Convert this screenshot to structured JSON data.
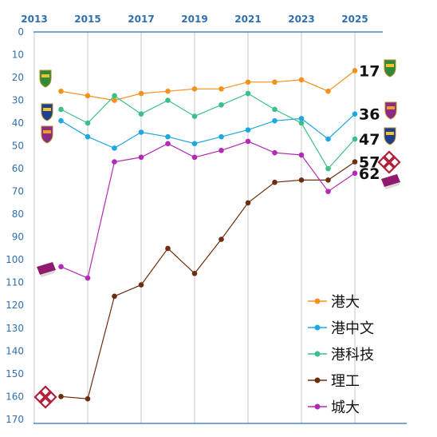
{
  "chart_data": {
    "type": "line",
    "x": [
      2014,
      2015,
      2016,
      2017,
      2018,
      2019,
      2020,
      2021,
      2022,
      2023,
      2024,
      2025
    ],
    "x_ticks": [
      2013,
      2015,
      2017,
      2019,
      2021,
      2023,
      2025
    ],
    "y_ticks": [
      0,
      10,
      20,
      30,
      40,
      50,
      60,
      70,
      80,
      90,
      100,
      110,
      120,
      130,
      140,
      150,
      160,
      170
    ],
    "xlim": [
      2013,
      2025.5
    ],
    "ylim": [
      0,
      170
    ],
    "y_inverted": true,
    "grid": "vertical",
    "legend_position": "bottom-right",
    "series": [
      {
        "name": "港大",
        "color": "#f5921e",
        "values": [
          26,
          28,
          30,
          27,
          26,
          25,
          25,
          22,
          22,
          21,
          26,
          17
        ]
      },
      {
        "name": "港中文",
        "color": "#1ea7e1",
        "values": [
          39,
          46,
          51,
          44,
          46,
          49,
          46,
          43,
          39,
          38,
          47,
          36
        ]
      },
      {
        "name": "港科技",
        "color": "#3dbf8a",
        "values": [
          34,
          40,
          28,
          36,
          30,
          37,
          32,
          27,
          34,
          40,
          60,
          47
        ]
      },
      {
        "name": "理工",
        "color": "#6b2e0f",
        "values": [
          160,
          161,
          116,
          111,
          95,
          106,
          91,
          75,
          66,
          65,
          65,
          57
        ]
      },
      {
        "name": "城大",
        "color": "#b22ab5",
        "values": [
          103,
          108,
          57,
          55,
          49,
          55,
          52,
          48,
          53,
          54,
          70,
          62
        ]
      }
    ],
    "end_labels": [
      "17",
      "36",
      "47",
      "57",
      "62"
    ],
    "logos": [
      "hku-crest-icon",
      "cuhk-crest-icon",
      "hkust-crest-icon",
      "polyu-logo-icon",
      "cityu-logo-icon"
    ]
  }
}
